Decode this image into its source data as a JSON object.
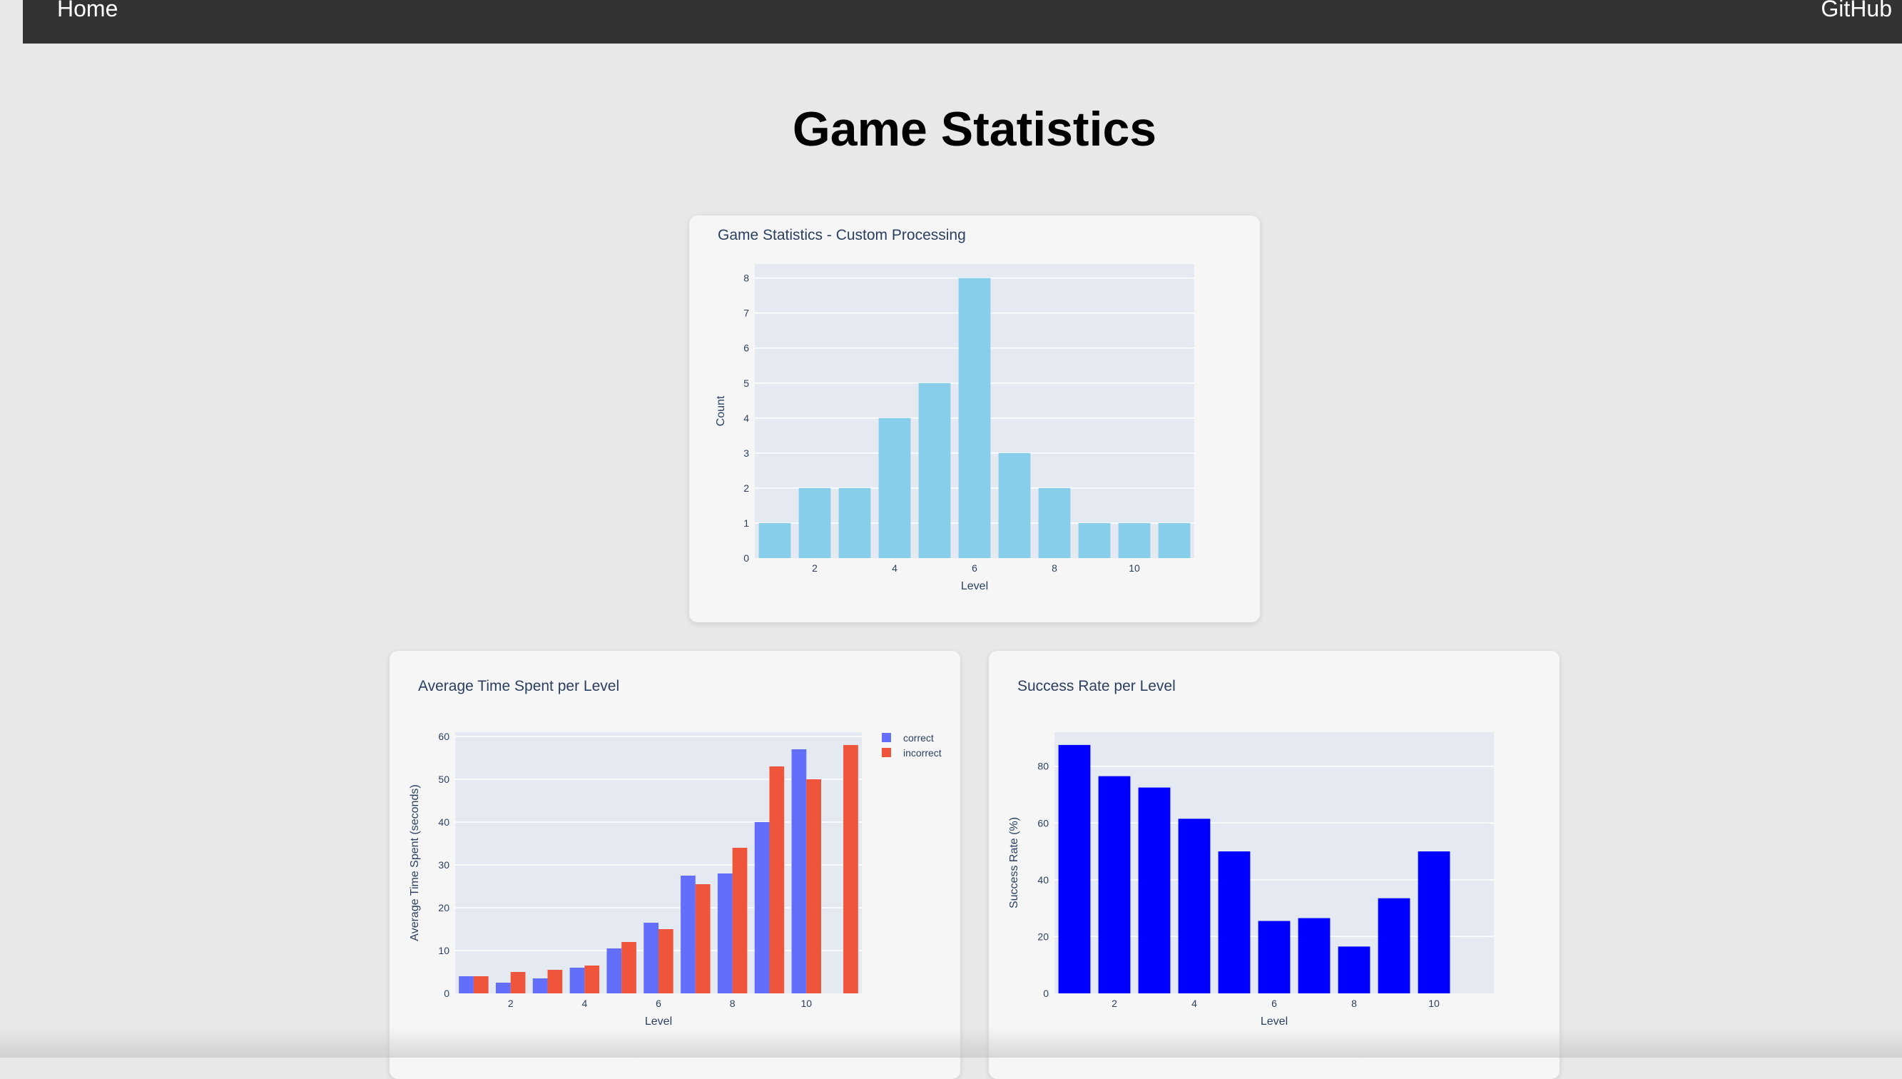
{
  "nav": {
    "home": "Home",
    "github": "GitHub"
  },
  "page": {
    "title": "Game Statistics"
  },
  "colors": {
    "plot_bg": "#e5e9f2",
    "grid": "#ffffff",
    "axis_text": "#2a3f5f",
    "skyblue": "#87ceeb",
    "correct": "#636efa",
    "incorrect": "#ef553b",
    "success": "#0000ff"
  },
  "chart_data": [
    {
      "id": "level-count",
      "type": "bar",
      "title": "Game Statistics - Custom Processing",
      "xlabel": "Level",
      "ylabel": "Count",
      "x": [
        1,
        2,
        3,
        4,
        5,
        6,
        7,
        8,
        9,
        10,
        11
      ],
      "xlim": [
        0.5,
        11.5
      ],
      "xticks": [
        2,
        4,
        6,
        8,
        10
      ],
      "ylim": [
        0,
        8.4
      ],
      "yticks": [
        0,
        1,
        2,
        3,
        4,
        5,
        6,
        7,
        8
      ],
      "series": [
        {
          "values": [
            1,
            2,
            2,
            4,
            5,
            8,
            3,
            2,
            1,
            1,
            1
          ],
          "color": "#87ceeb"
        }
      ],
      "grid": true
    },
    {
      "id": "avg-time",
      "type": "bar",
      "title": "Average Time Spent per Level",
      "xlabel": "Level",
      "ylabel": "Average Time Spent (seconds)",
      "x": [
        1,
        2,
        3,
        4,
        5,
        6,
        7,
        8,
        9,
        10,
        11
      ],
      "xlim": [
        0.5,
        11.5
      ],
      "xticks": [
        2,
        4,
        6,
        8,
        10
      ],
      "ylim": [
        0,
        61
      ],
      "yticks": [
        0,
        10,
        20,
        30,
        40,
        50,
        60
      ],
      "series": [
        {
          "name": "correct",
          "values": [
            4,
            2.5,
            3.5,
            6,
            10.5,
            16.5,
            27.5,
            28,
            40,
            57,
            null
          ],
          "color": "#636efa"
        },
        {
          "name": "incorrect",
          "values": [
            4,
            5,
            5.5,
            6.5,
            12,
            15,
            25.5,
            34,
            53,
            50,
            58
          ],
          "color": "#ef553b"
        }
      ],
      "legend": "top-right",
      "grid": true
    },
    {
      "id": "success-rate",
      "type": "bar",
      "title": "Success Rate per Level",
      "xlabel": "Level",
      "ylabel": "Success Rate (%)",
      "x": [
        1,
        2,
        3,
        4,
        5,
        6,
        7,
        8,
        9,
        10
      ],
      "xlim": [
        0.5,
        11.5
      ],
      "xticks": [
        2,
        4,
        6,
        8,
        10
      ],
      "ylim": [
        0,
        92
      ],
      "yticks": [
        0,
        20,
        40,
        60,
        80
      ],
      "series": [
        {
          "values": [
            87.5,
            76.5,
            72.5,
            61.5,
            50,
            25.5,
            26.5,
            16.5,
            33.5,
            50
          ],
          "color": "#0000ff"
        }
      ],
      "grid": true
    }
  ]
}
